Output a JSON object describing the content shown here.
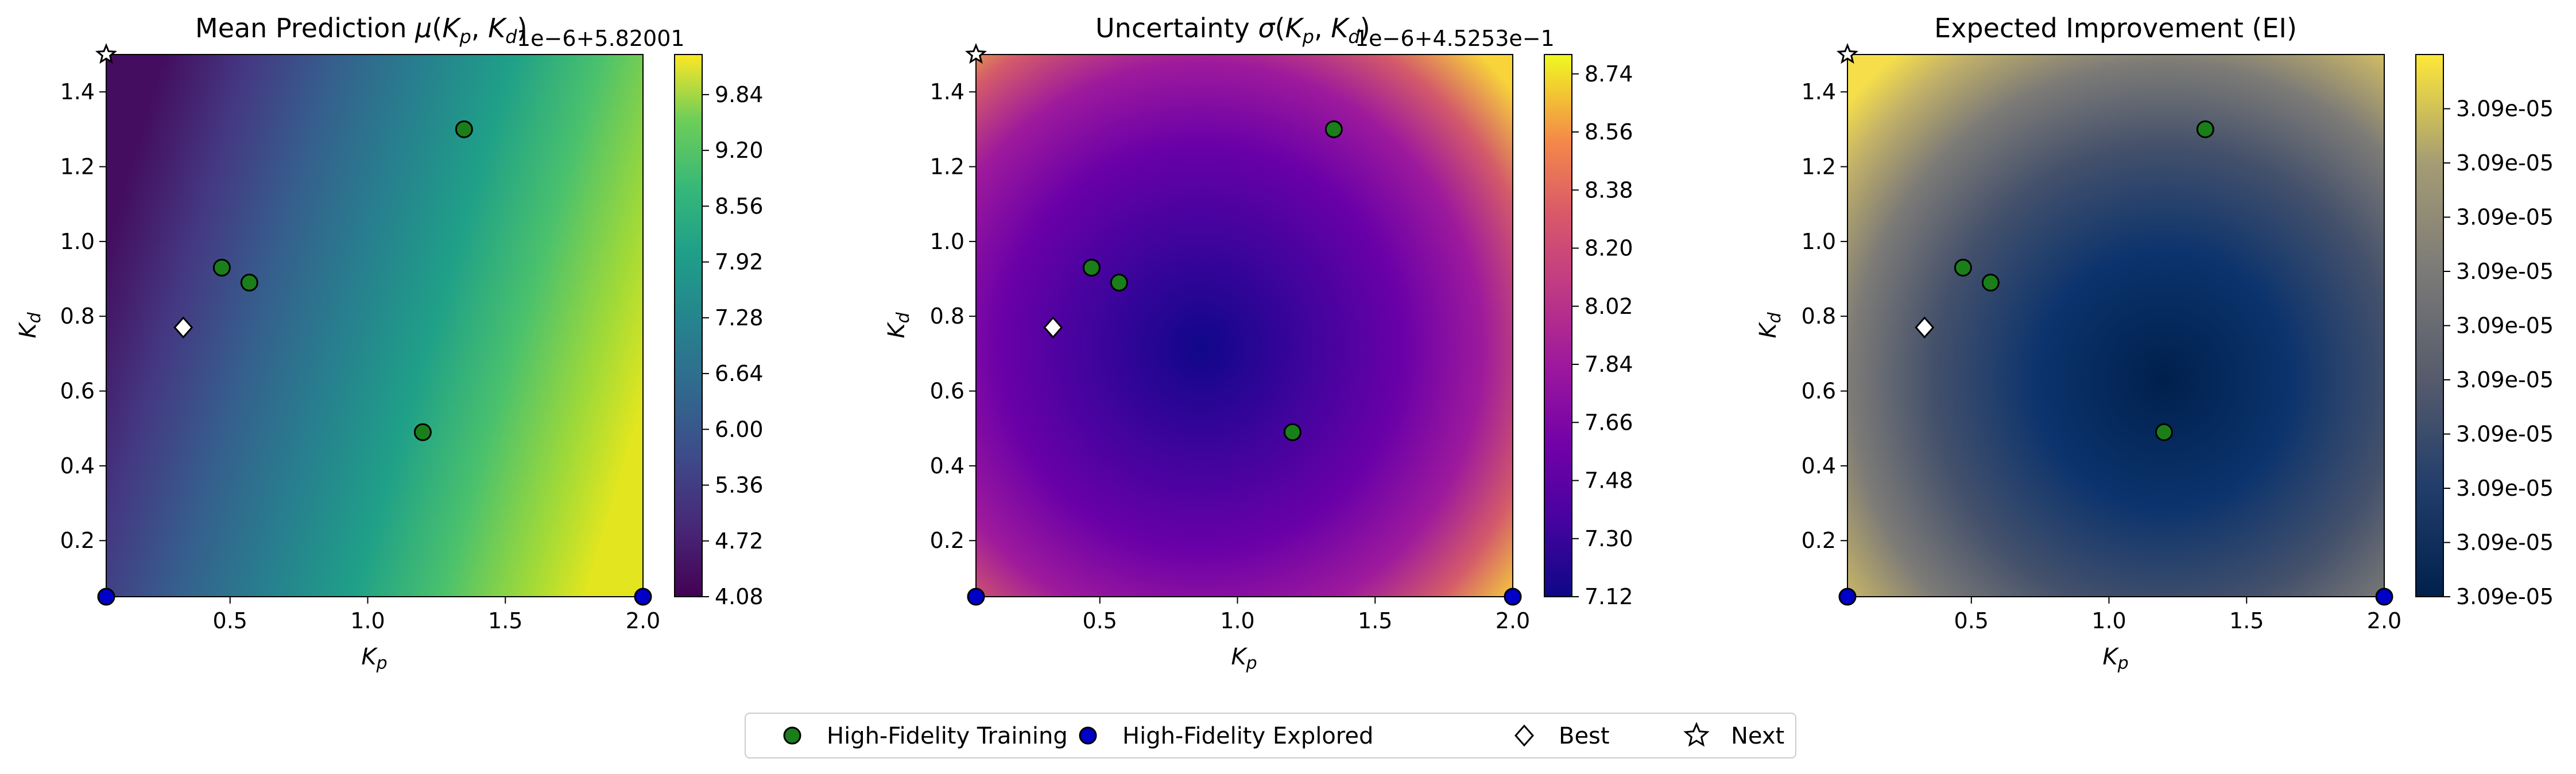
{
  "chart_data": [
    {
      "type": "heatmap",
      "title": "Mean Prediction μ(Kp, Kd)",
      "title_parts": {
        "pre": "Mean Prediction ",
        "mu": "μ(",
        "k": "K",
        "p": "p",
        ",": ", ",
        "k2": "K",
        "d": "d",
        ")": ")"
      },
      "xlabel": "K",
      "xlabel_sub": "p",
      "ylabel": "K",
      "ylabel_sub": "d",
      "xlim": [
        0.05,
        2.0
      ],
      "ylim": [
        0.05,
        1.5
      ],
      "xticks": [
        "0.5",
        "1.0",
        "1.5",
        "2.0"
      ],
      "yticks": [
        "0.2",
        "0.4",
        "0.6",
        "0.8",
        "1.0",
        "1.2",
        "1.4"
      ],
      "colormap": "viridis",
      "colorbar_offset": "1e−6+5.82001",
      "colorbar_ticks": [
        "4.08",
        "4.72",
        "5.36",
        "6.00",
        "6.64",
        "7.28",
        "7.92",
        "8.56",
        "9.20",
        "9.84"
      ],
      "colorbar_range": [
        4.08,
        10.3
      ]
    },
    {
      "type": "heatmap",
      "title": "Uncertainty σ(Kp, Kd)",
      "title_parts": {
        "pre": "Uncertainty "
      },
      "xlabel": "K",
      "xlabel_sub": "p",
      "ylabel": "K",
      "ylabel_sub": "d",
      "xlim": [
        0.05,
        2.0
      ],
      "ylim": [
        0.05,
        1.5
      ],
      "xticks": [
        "0.5",
        "1.0",
        "1.5",
        "2.0"
      ],
      "yticks": [
        "0.2",
        "0.4",
        "0.6",
        "0.8",
        "1.0",
        "1.2",
        "1.4"
      ],
      "colormap": "plasma",
      "colorbar_offset": "1e−6+4.5253e−1",
      "colorbar_ticks": [
        "7.12",
        "7.30",
        "7.48",
        "7.66",
        "7.84",
        "8.02",
        "8.20",
        "8.38",
        "8.56",
        "8.74"
      ],
      "colorbar_range": [
        7.12,
        8.8
      ]
    },
    {
      "type": "heatmap",
      "title": "Expected Improvement (EI)",
      "xlabel": "K",
      "xlabel_sub": "p",
      "ylabel": "K",
      "ylabel_sub": "d",
      "xlim": [
        0.05,
        2.0
      ],
      "ylim": [
        0.05,
        1.5
      ],
      "xticks": [
        "0.5",
        "1.0",
        "1.5",
        "2.0"
      ],
      "yticks": [
        "0.2",
        "0.4",
        "0.6",
        "0.8",
        "1.0",
        "1.2",
        "1.4"
      ],
      "colormap": "cividis",
      "colorbar_offset": "",
      "colorbar_ticks": [
        "3.09e-05",
        "3.09e-05",
        "3.09e-05",
        "3.09e-05",
        "3.09e-05",
        "3.09e-05",
        "3.09e-05",
        "3.09e-05",
        "3.09e-05",
        "3.09e-05"
      ],
      "colorbar_range": [
        0,
        10
      ]
    }
  ],
  "points": {
    "training": [
      [
        1.35,
        1.3
      ],
      [
        0.47,
        0.93
      ],
      [
        0.57,
        0.89
      ],
      [
        1.2,
        0.49
      ]
    ],
    "explored": [
      [
        0.05,
        0.05
      ],
      [
        2.0,
        0.05
      ]
    ],
    "best": [
      0.33,
      0.77
    ],
    "next": [
      0.05,
      1.5
    ]
  },
  "legend": {
    "items": [
      {
        "label": "High-Fidelity Training",
        "marker": "circle",
        "color": "#1a7f1a"
      },
      {
        "label": "High-Fidelity Explored",
        "marker": "circle",
        "color": "#0000c8"
      },
      {
        "label": "Best",
        "marker": "diamond",
        "color": "#ffffff"
      },
      {
        "label": "Next",
        "marker": "star",
        "color": "#ffffff"
      }
    ],
    "placement": "bottom-center"
  }
}
